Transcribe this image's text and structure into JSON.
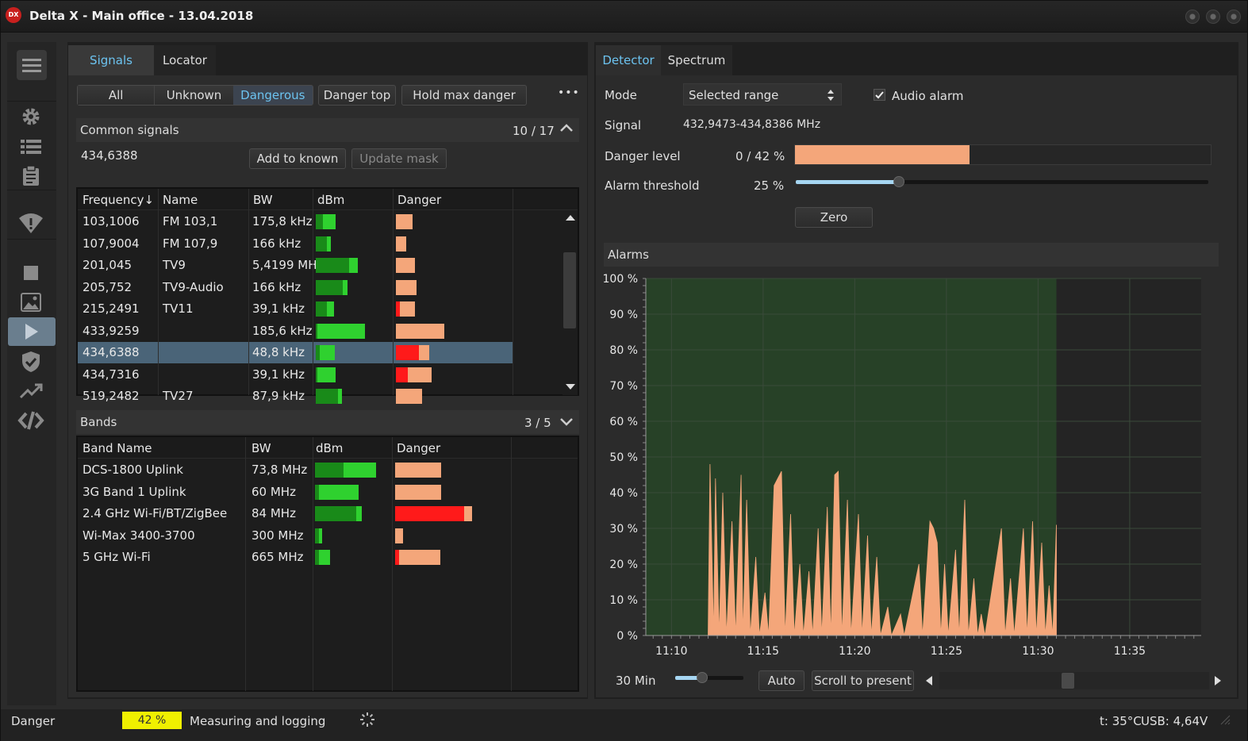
{
  "app": {
    "logo": "DX",
    "title": "Delta X - Main office - 13.04.2018"
  },
  "sidebar": {
    "icons": [
      "menu-icon",
      "settings-icon",
      "list-icon",
      "clipboard-icon",
      "wifi-shield-icon",
      "stop-icon",
      "image-icon",
      "play-icon",
      "shield-check-icon",
      "trend-icon",
      "code-icon"
    ]
  },
  "left": {
    "tabs": [
      "Signals",
      "Locator"
    ],
    "filters": [
      "All",
      "Unknown",
      "Dangerous"
    ],
    "danger_top": "Danger top",
    "hold_max": "Hold max danger",
    "more": "•••",
    "common": {
      "title": "Common signals",
      "count": "10 / 17",
      "selected": "434,6388",
      "add_known": "Add to known",
      "update_mask": "Update mask"
    },
    "signals": {
      "columns": [
        "Frequency↓",
        "Name",
        "BW",
        "dBm",
        "Danger"
      ],
      "rows": [
        {
          "freq": "103,1006",
          "name": "FM 103,1",
          "bw": "175,8 kHz",
          "dbm_dark": 0.1,
          "dbm_light": 0.17,
          "danger_red": 0,
          "danger_orange": 0.21
        },
        {
          "freq": "107,9004",
          "name": "FM 107,9",
          "bw": "166 kHz",
          "dbm_dark": 0.15,
          "dbm_light": 0.05,
          "danger_red": 0,
          "danger_orange": 0.13
        },
        {
          "freq": "201,045",
          "name": "TV9",
          "bw": "5,4199 MH",
          "dbm_dark": 0.45,
          "dbm_light": 0.12,
          "danger_red": 0,
          "danger_orange": 0.24
        },
        {
          "freq": "205,752",
          "name": "TV9-Audio",
          "bw": "166 kHz",
          "dbm_dark": 0.36,
          "dbm_light": 0.06,
          "danger_red": 0,
          "danger_orange": 0.26
        },
        {
          "freq": "215,2491",
          "name": "TV11",
          "bw": "39,1 kHz",
          "dbm_dark": 0.15,
          "dbm_light": 0.1,
          "danger_red": 0.05,
          "danger_orange": 0.19
        },
        {
          "freq": "433,9259",
          "name": "",
          "bw": "185,6 kHz",
          "dbm_dark": 0.02,
          "dbm_light": 0.64,
          "danger_red": 0,
          "danger_orange": 0.61
        },
        {
          "freq": "434,6388",
          "name": "",
          "bw": "48,8 kHz",
          "dbm_dark": 0.05,
          "dbm_light": 0.2,
          "danger_red": 0.29,
          "danger_orange": 0.13
        },
        {
          "freq": "434,7316",
          "name": "",
          "bw": "39,1 kHz",
          "dbm_dark": 0.02,
          "dbm_light": 0.24,
          "danger_red": 0.15,
          "danger_orange": 0.3
        },
        {
          "freq": "519,2482",
          "name": "TV27",
          "bw": "87,9 kHz",
          "dbm_dark": 0.3,
          "dbm_light": 0.05,
          "danger_red": 0,
          "danger_orange": 0.33
        }
      ],
      "selected_index": 6
    },
    "bands": {
      "title": "Bands",
      "count": "3 / 5",
      "columns": [
        "Band Name",
        "BW",
        "dBm",
        "Danger"
      ],
      "rows": [
        {
          "name": "DCS-1800 Uplink",
          "bw": "73,8 MHz",
          "dbm_dark": 0.38,
          "dbm_light": 0.44,
          "danger_red": 0,
          "danger_orange": 0.58
        },
        {
          "name": "3G Band 1 Uplink",
          "bw": "60 MHz",
          "dbm_dark": 0.05,
          "dbm_light": 0.53,
          "danger_red": 0,
          "danger_orange": 0.58
        },
        {
          "name": "2.4 GHz Wi-Fi/BT/ZigBee",
          "bw": "84 MHz",
          "dbm_dark": 0.55,
          "dbm_light": 0.07,
          "danger_red": 0.87,
          "danger_orange": 0.1
        },
        {
          "name": "Wi-Max 3400-3700",
          "bw": "300 MHz",
          "dbm_dark": 0.05,
          "dbm_light": 0.04,
          "danger_red": 0,
          "danger_orange": 0.1
        },
        {
          "name": "5 GHz Wi-Fi",
          "bw": "665 MHz",
          "dbm_dark": 0.05,
          "dbm_light": 0.15,
          "danger_red": 0.05,
          "danger_orange": 0.52
        }
      ]
    }
  },
  "right": {
    "tabs": [
      "Detector",
      "Spectrum"
    ],
    "mode_label": "Mode",
    "mode_value": "Selected range",
    "audio_alarm": "Audio alarm",
    "audio_checked": true,
    "signal_label": "Signal",
    "signal_value": "432,9473-434,8386 MHz",
    "danger_label": "Danger level",
    "danger_value": "0 / 42 %",
    "danger_fraction": 0.42,
    "threshold_label": "Alarm threshold",
    "threshold_value": "25 %",
    "threshold_fraction": 0.25,
    "zero": "Zero",
    "alarms_title": "Alarms",
    "range_label": "30 Min",
    "auto": "Auto",
    "scroll": "Scroll to present"
  },
  "chart_data": {
    "type": "area",
    "title": "",
    "y_ticks": [
      "100 %",
      "90 %",
      "80 %",
      "70 %",
      "60 %",
      "50 %",
      "40 %",
      "30 %",
      "20 %",
      "10 %",
      "0 %"
    ],
    "x_ticks": [
      "11:10",
      "11:15",
      "11:20",
      "11:25",
      "11:30",
      "11:35"
    ],
    "ylim": [
      0,
      100
    ],
    "x_range_minutes": [
      8.6,
      38.9
    ],
    "x_tick_minutes": [
      10,
      15,
      20,
      25,
      30,
      35
    ],
    "active_window_minutes": [
      8.6,
      31.0
    ],
    "colors": {
      "area": "#f4a67a",
      "active_bg": "#274127",
      "inactive_bg": "#242424",
      "grid": "#3a4a3a"
    },
    "series": [
      {
        "values": [
          [
            12.0,
            0
          ],
          [
            12.1,
            48
          ],
          [
            12.3,
            0
          ],
          [
            12.4,
            44
          ],
          [
            12.6,
            0
          ],
          [
            12.8,
            40
          ],
          [
            13.0,
            0
          ],
          [
            13.3,
            32
          ],
          [
            13.5,
            0
          ],
          [
            13.8,
            45
          ],
          [
            13.9,
            0
          ],
          [
            14.1,
            38
          ],
          [
            14.3,
            0
          ],
          [
            14.6,
            22
          ],
          [
            14.8,
            0
          ],
          [
            15.1,
            12
          ],
          [
            15.3,
            0
          ],
          [
            15.6,
            42
          ],
          [
            15.8,
            44
          ],
          [
            16.0,
            46
          ],
          [
            16.2,
            0
          ],
          [
            16.5,
            34
          ],
          [
            16.7,
            0
          ],
          [
            17.0,
            20
          ],
          [
            17.2,
            0
          ],
          [
            17.5,
            18
          ],
          [
            17.7,
            0
          ],
          [
            18.0,
            30
          ],
          [
            18.2,
            0
          ],
          [
            18.5,
            36
          ],
          [
            18.7,
            0
          ],
          [
            18.9,
            45
          ],
          [
            19.1,
            46
          ],
          [
            19.3,
            0
          ],
          [
            19.6,
            38
          ],
          [
            19.8,
            0
          ],
          [
            20.2,
            34
          ],
          [
            20.4,
            0
          ],
          [
            20.7,
            28
          ],
          [
            20.9,
            0
          ],
          [
            21.2,
            22
          ],
          [
            21.4,
            0
          ],
          [
            21.8,
            8
          ],
          [
            22.0,
            0
          ],
          [
            22.5,
            6
          ],
          [
            22.7,
            0
          ],
          [
            23.5,
            20
          ],
          [
            23.7,
            0
          ],
          [
            24.1,
            32
          ],
          [
            24.3,
            30
          ],
          [
            24.5,
            26
          ],
          [
            24.7,
            0
          ],
          [
            24.9,
            20
          ],
          [
            25.1,
            0
          ],
          [
            25.5,
            24
          ],
          [
            25.7,
            0
          ],
          [
            26.0,
            38
          ],
          [
            26.2,
            0
          ],
          [
            26.5,
            16
          ],
          [
            26.7,
            0
          ],
          [
            26.9,
            6
          ],
          [
            27.1,
            0
          ],
          [
            28.0,
            30
          ],
          [
            28.2,
            0
          ],
          [
            28.5,
            16
          ],
          [
            28.7,
            0
          ],
          [
            29.2,
            30
          ],
          [
            29.4,
            0
          ],
          [
            29.7,
            32
          ],
          [
            29.9,
            0
          ],
          [
            30.2,
            26
          ],
          [
            30.4,
            0
          ],
          [
            30.6,
            14
          ],
          [
            30.8,
            0
          ],
          [
            31.0,
            31
          ],
          [
            31.0,
            0
          ]
        ]
      }
    ]
  },
  "status": {
    "label": "Danger",
    "percent": "42 %",
    "state": "Measuring and logging",
    "temp": "t: 35°C",
    "usb": "USB: 4,64V"
  }
}
